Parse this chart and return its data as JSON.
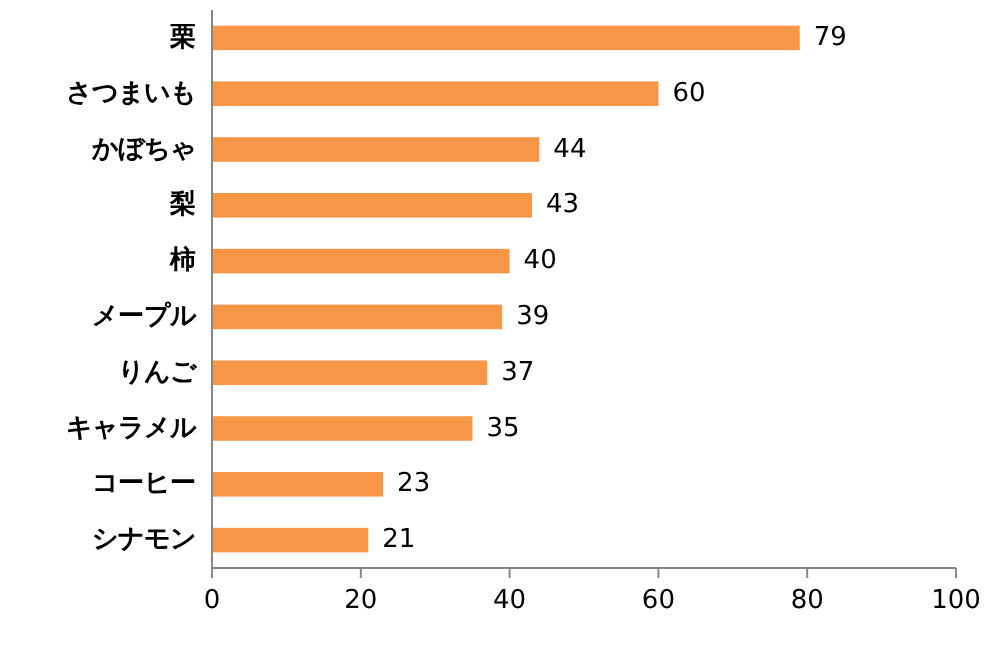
{
  "chart_data": {
    "type": "bar",
    "orientation": "horizontal",
    "categories": [
      "栗",
      "さつまいも",
      "かぼちゃ",
      "梨",
      "柿",
      "メープル",
      "りんご",
      "キャラメル",
      "コーヒー",
      "シナモン"
    ],
    "values": [
      79,
      60,
      44,
      43,
      40,
      39,
      37,
      35,
      23,
      21
    ],
    "color": "#f79646",
    "data_labels": true,
    "xlim": [
      0,
      100
    ],
    "xticks": [
      0,
      20,
      40,
      60,
      80,
      100
    ]
  }
}
